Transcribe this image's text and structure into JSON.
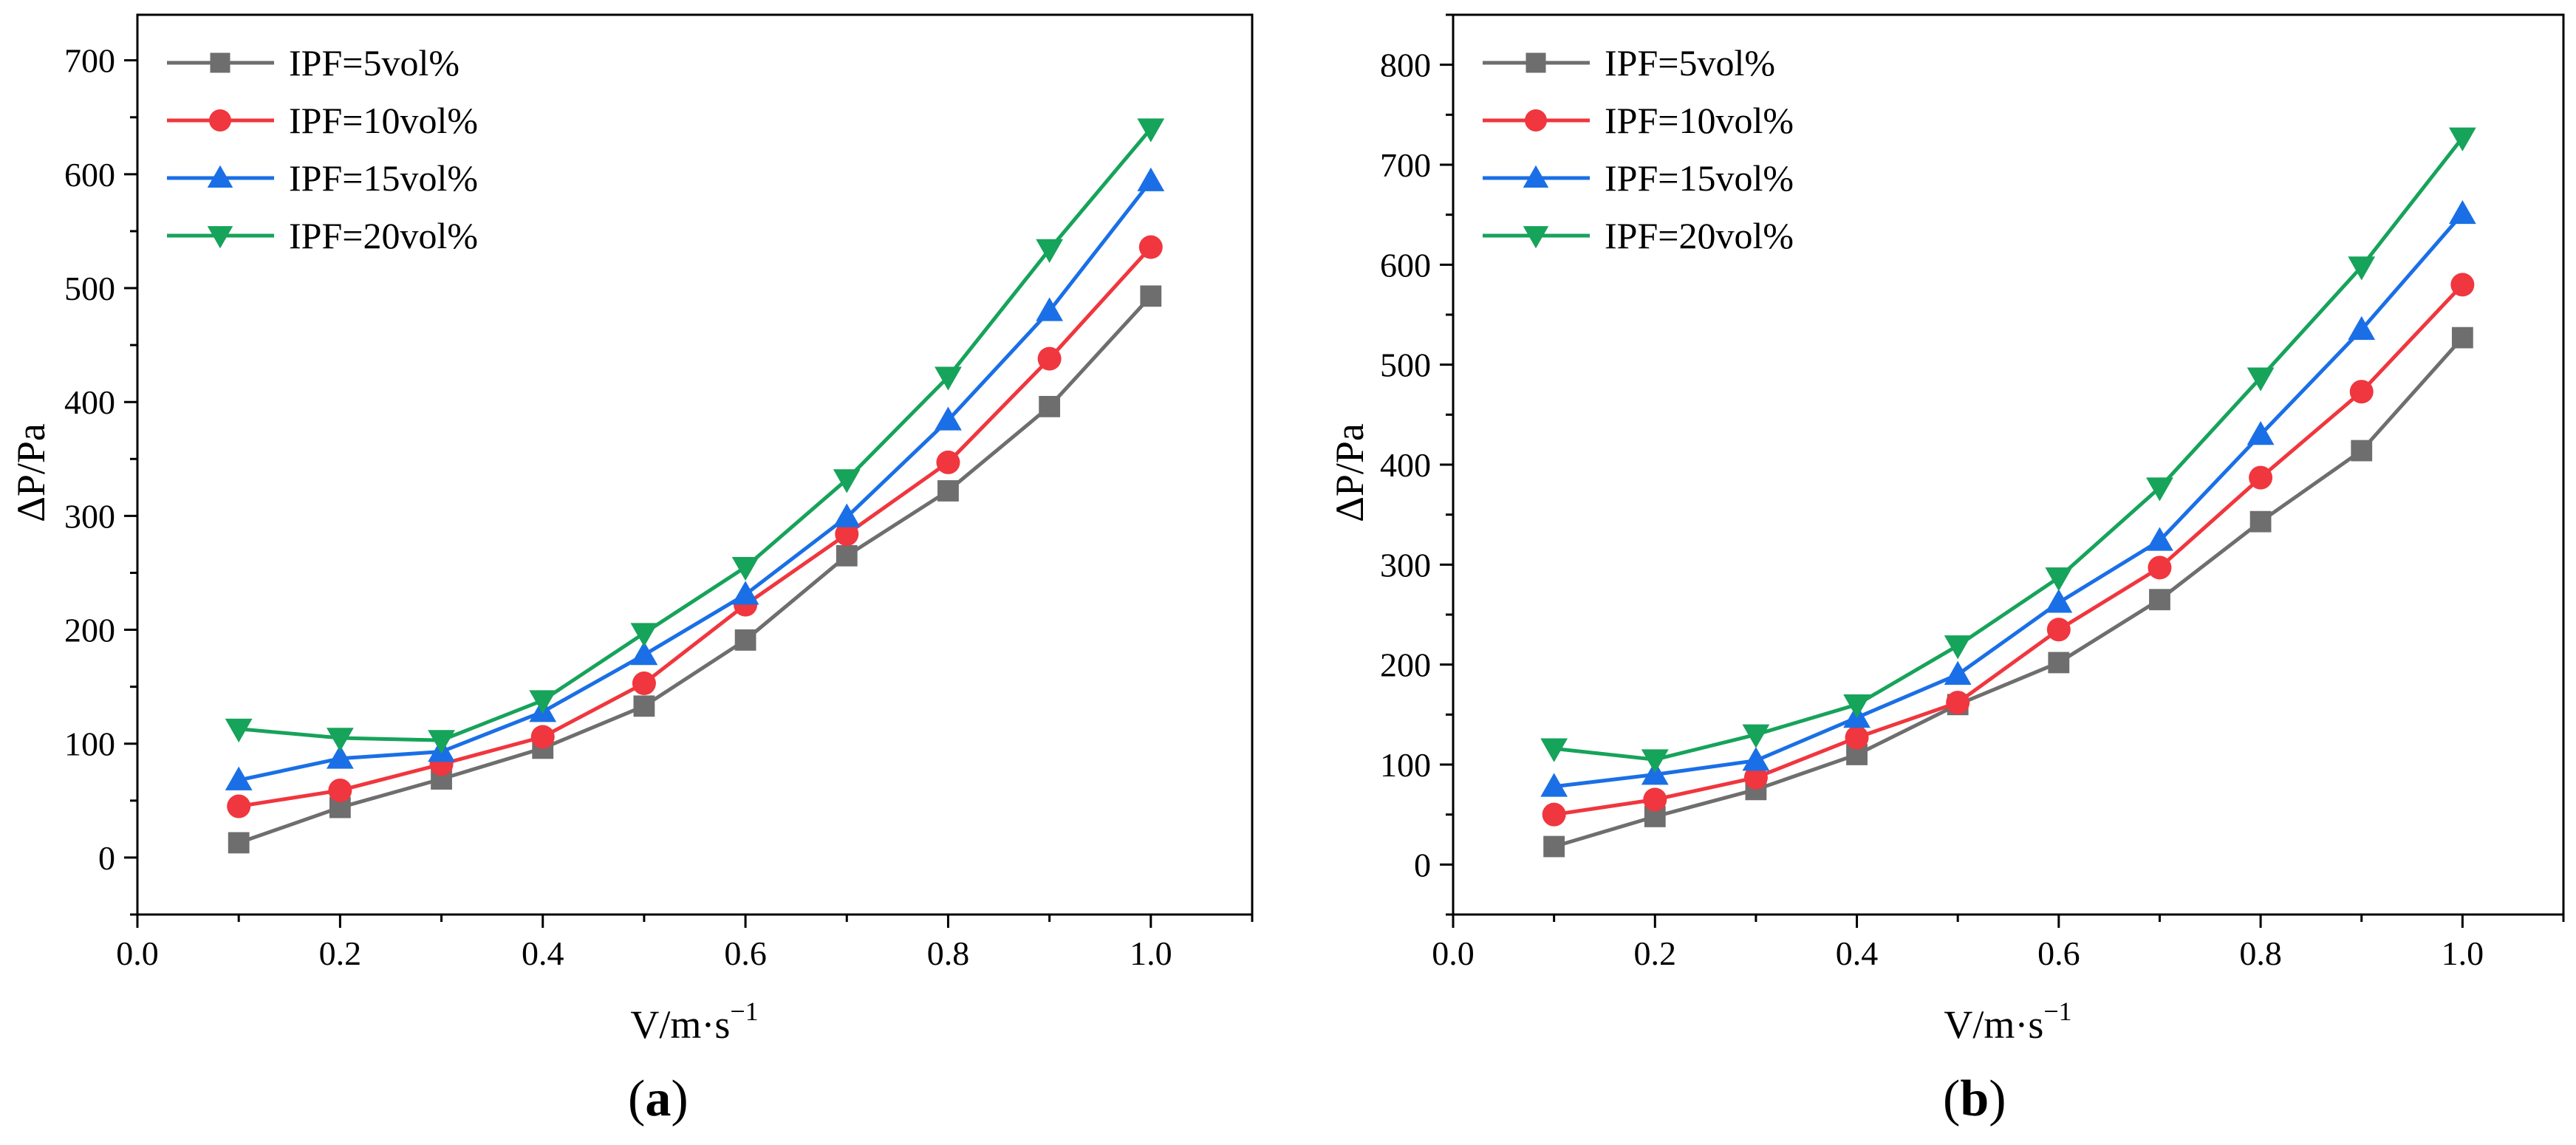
{
  "chart_data": [
    {
      "type": "line",
      "panel_label": "a",
      "xlabel": "V/m·s",
      "xlabel_exp": "−1",
      "ylabel": "ΔP/Pa",
      "xlim": [
        0.0,
        1.1
      ],
      "ylim": [
        -50,
        740
      ],
      "xticks": [
        0.0,
        0.2,
        0.4,
        0.6,
        0.8,
        1.0
      ],
      "xtick_labels": [
        "0.0",
        "0.2",
        "0.4",
        "0.6",
        "0.8",
        "1.0"
      ],
      "yticks": [
        0,
        100,
        200,
        300,
        400,
        500,
        600,
        700
      ],
      "ytick_labels": [
        "0",
        "100",
        "200",
        "300",
        "400",
        "500",
        "600",
        "700"
      ],
      "legend_position": "top-left",
      "x": [
        0.1,
        0.2,
        0.3,
        0.4,
        0.5,
        0.6,
        0.7,
        0.8,
        0.9,
        1.0
      ],
      "series": [
        {
          "name": "IPF=5vol%",
          "color": "#6e6e6e",
          "marker": "square",
          "values": [
            13,
            44,
            69,
            96,
            133,
            191,
            265,
            322,
            396,
            493
          ]
        },
        {
          "name": "IPF=10vol%",
          "color": "#f0363e",
          "marker": "circle",
          "values": [
            45,
            59,
            82,
            106,
            153,
            222,
            284,
            347,
            438,
            536
          ]
        },
        {
          "name": "IPF=15vol%",
          "color": "#1a6fe6",
          "marker": "triangle-up",
          "values": [
            68,
            87,
            93,
            128,
            178,
            231,
            299,
            384,
            480,
            594
          ]
        },
        {
          "name": "IPF=20vol%",
          "color": "#16a35a",
          "marker": "triangle-down",
          "values": [
            113,
            105,
            103,
            138,
            197,
            255,
            332,
            422,
            534,
            640
          ]
        }
      ]
    },
    {
      "type": "line",
      "panel_label": "b",
      "xlabel": "V/m·s",
      "xlabel_exp": "−1",
      "ylabel": "ΔP/Pa",
      "xlim": [
        0.0,
        1.1
      ],
      "ylim": [
        -50,
        850
      ],
      "xticks": [
        0.0,
        0.2,
        0.4,
        0.6,
        0.8,
        1.0
      ],
      "xtick_labels": [
        "0.0",
        "0.2",
        "0.4",
        "0.6",
        "0.8",
        "1.0"
      ],
      "yticks": [
        0,
        100,
        200,
        300,
        400,
        500,
        600,
        700,
        800
      ],
      "ytick_labels": [
        "0",
        "100",
        "200",
        "300",
        "400",
        "500",
        "600",
        "700",
        "800"
      ],
      "legend_position": "top-left",
      "x": [
        0.1,
        0.2,
        0.3,
        0.4,
        0.5,
        0.6,
        0.7,
        0.8,
        0.9,
        1.0
      ],
      "series": [
        {
          "name": "IPF=5vol%",
          "color": "#6e6e6e",
          "marker": "square",
          "values": [
            18,
            48,
            75,
            110,
            160,
            202,
            265,
            343,
            414,
            527
          ]
        },
        {
          "name": "IPF=10vol%",
          "color": "#f0363e",
          "marker": "circle",
          "values": [
            50,
            65,
            87,
            127,
            162,
            235,
            297,
            387,
            473,
            580
          ]
        },
        {
          "name": "IPF=15vol%",
          "color": "#1a6fe6",
          "marker": "triangle-up",
          "values": [
            78,
            90,
            104,
            147,
            190,
            262,
            324,
            430,
            535,
            651
          ]
        },
        {
          "name": "IPF=20vol%",
          "color": "#16a35a",
          "marker": "triangle-down",
          "values": [
            116,
            105,
            130,
            160,
            219,
            287,
            377,
            487,
            598,
            727
          ]
        }
      ]
    }
  ]
}
